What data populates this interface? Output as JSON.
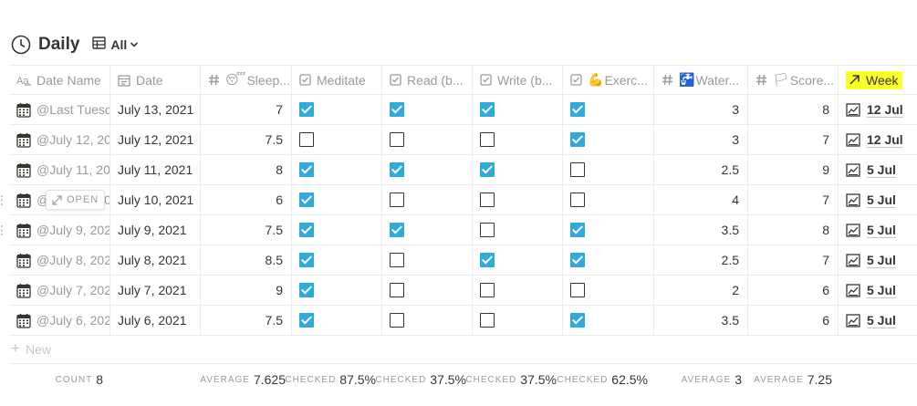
{
  "title": "Daily",
  "view": {
    "label": "All"
  },
  "columns": [
    {
      "label": "Date Name",
      "icon": "text-property-icon"
    },
    {
      "label": "Date",
      "icon": "calendar-icon"
    },
    {
      "label": "Sleep...",
      "icon": "number-icon",
      "emoji": "😴"
    },
    {
      "label": "Meditate",
      "icon": "checkbox-icon"
    },
    {
      "label": "Read (b...",
      "icon": "checkbox-icon"
    },
    {
      "label": "Write (b...",
      "icon": "checkbox-icon"
    },
    {
      "label": "Exerc...",
      "icon": "checkbox-icon",
      "emoji": "💪"
    },
    {
      "label": "Water...",
      "icon": "number-icon",
      "emoji": "🚰"
    },
    {
      "label": "Score...",
      "icon": "number-icon",
      "emoji": "🏳"
    },
    {
      "label": "Week",
      "icon": "relation-arrow-icon"
    }
  ],
  "rows": [
    {
      "name": "@Last Tuesd",
      "date": "July 13, 2021",
      "sleep": "7",
      "meditate": true,
      "read": true,
      "write": true,
      "exercise": true,
      "water": "3",
      "score": "8",
      "week": "12 Jul"
    },
    {
      "name": "@July 12, 20",
      "date": "July 12, 2021",
      "sleep": "7.5",
      "meditate": false,
      "read": false,
      "write": false,
      "exercise": true,
      "water": "3",
      "score": "7",
      "week": "12 Jul"
    },
    {
      "name": "@July 11, 20",
      "date": "July 11, 2021",
      "sleep": "8",
      "meditate": true,
      "read": true,
      "write": true,
      "exercise": false,
      "water": "2.5",
      "score": "9",
      "week": "5 Jul"
    },
    {
      "name": "@July 10, 2021",
      "date": "July 10, 2021",
      "sleep": "6",
      "meditate": true,
      "read": false,
      "write": false,
      "exercise": false,
      "water": "4",
      "score": "7",
      "week": "5 Jul"
    },
    {
      "name": "@July 9, 202",
      "date": "July 9, 2021",
      "sleep": "7.5",
      "meditate": true,
      "read": true,
      "write": false,
      "exercise": true,
      "water": "3.5",
      "score": "8",
      "week": "5 Jul"
    },
    {
      "name": "@July 8, 202",
      "date": "July 8, 2021",
      "sleep": "8.5",
      "meditate": true,
      "read": false,
      "write": true,
      "exercise": true,
      "water": "2.5",
      "score": "7",
      "week": "5 Jul"
    },
    {
      "name": "@July 7, 202",
      "date": "July 7, 2021",
      "sleep": "9",
      "meditate": true,
      "read": false,
      "write": false,
      "exercise": false,
      "water": "2",
      "score": "6",
      "week": "5 Jul"
    },
    {
      "name": "@July 6, 202",
      "date": "July 6, 2021",
      "sleep": "7.5",
      "meditate": true,
      "read": false,
      "write": false,
      "exercise": true,
      "water": "3.5",
      "score": "6",
      "week": "5 Jul"
    }
  ],
  "open_button": "OPEN",
  "new_row": "New",
  "footer": {
    "count": {
      "label": "COUNT",
      "value": "8"
    },
    "sleep": {
      "label": "AVERAGE",
      "value": "7.625"
    },
    "meditate": {
      "label": "CHECKED",
      "value": "87.5%"
    },
    "read": {
      "label": "CHECKED",
      "value": "37.5%"
    },
    "write": {
      "label": "CHECKED",
      "value": "37.5%"
    },
    "exercise": {
      "label": "CHECKED",
      "value": "62.5%"
    },
    "water": {
      "label": "AVERAGE",
      "value": "3"
    },
    "score": {
      "label": "AVERAGE",
      "value": "7.25"
    }
  },
  "colors": {
    "checked": "#2eaadc",
    "highlight": "#fbff2a",
    "muted": "#9b9a97",
    "border": "#ebebea"
  }
}
